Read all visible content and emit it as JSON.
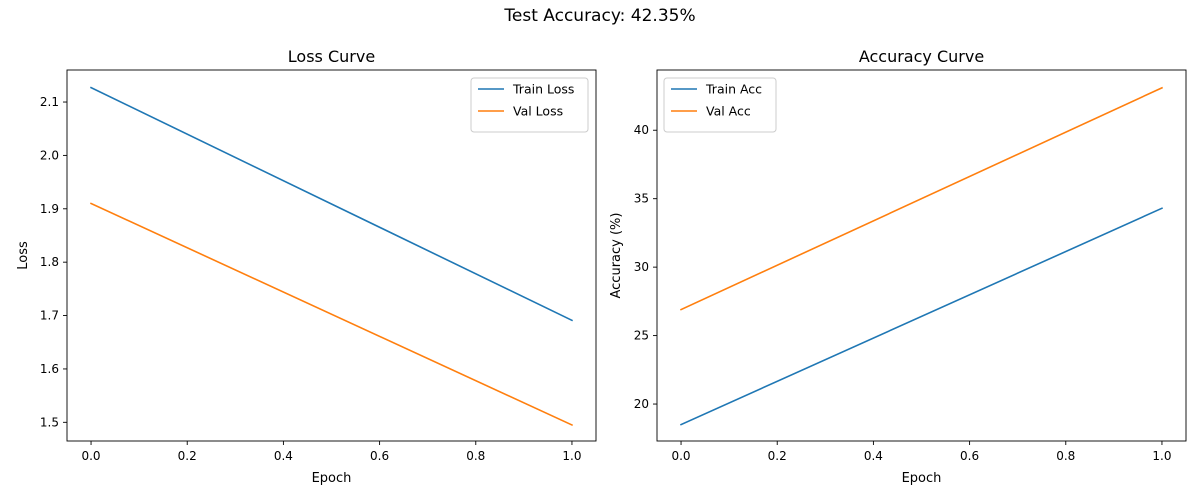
{
  "suptitle": "Test Accuracy: 42.35%",
  "colors": {
    "train": "#1f77b4",
    "val": "#ff7f0e"
  },
  "chart_data": [
    {
      "type": "line",
      "title": "Loss Curve",
      "xlabel": "Epoch",
      "ylabel": "Loss",
      "x": [
        0.0,
        1.0
      ],
      "xlim": [
        -0.05,
        1.05
      ],
      "ylim": [
        1.465,
        2.16
      ],
      "xticks": [
        0.0,
        0.2,
        0.4,
        0.6,
        0.8,
        1.0
      ],
      "xtick_labels": [
        "0.0",
        "0.2",
        "0.4",
        "0.6",
        "0.8",
        "1.0"
      ],
      "yticks": [
        1.5,
        1.6,
        1.7,
        1.8,
        1.9,
        2.0,
        2.1
      ],
      "ytick_labels": [
        "1.5",
        "1.6",
        "1.7",
        "1.8",
        "1.9",
        "2.0",
        "2.1"
      ],
      "grid": false,
      "legend_position": "upper right",
      "series": [
        {
          "name": "Train Loss",
          "color": "#1f77b4",
          "values": [
            2.127,
            1.691
          ]
        },
        {
          "name": "Val Loss",
          "color": "#ff7f0e",
          "values": [
            1.91,
            1.495
          ]
        }
      ]
    },
    {
      "type": "line",
      "title": "Accuracy Curve",
      "xlabel": "Epoch",
      "ylabel": "Accuracy (%)",
      "x": [
        0.0,
        1.0
      ],
      "xlim": [
        -0.05,
        1.05
      ],
      "ylim": [
        17.3,
        44.4
      ],
      "xticks": [
        0.0,
        0.2,
        0.4,
        0.6,
        0.8,
        1.0
      ],
      "xtick_labels": [
        "0.0",
        "0.2",
        "0.4",
        "0.6",
        "0.8",
        "1.0"
      ],
      "yticks": [
        20,
        25,
        30,
        35,
        40
      ],
      "ytick_labels": [
        "20",
        "25",
        "30",
        "35",
        "40"
      ],
      "grid": false,
      "legend_position": "upper left",
      "series": [
        {
          "name": "Train Acc",
          "color": "#1f77b4",
          "values": [
            18.5,
            34.3
          ]
        },
        {
          "name": "Val Acc",
          "color": "#ff7f0e",
          "values": [
            26.9,
            43.1
          ]
        }
      ]
    }
  ]
}
